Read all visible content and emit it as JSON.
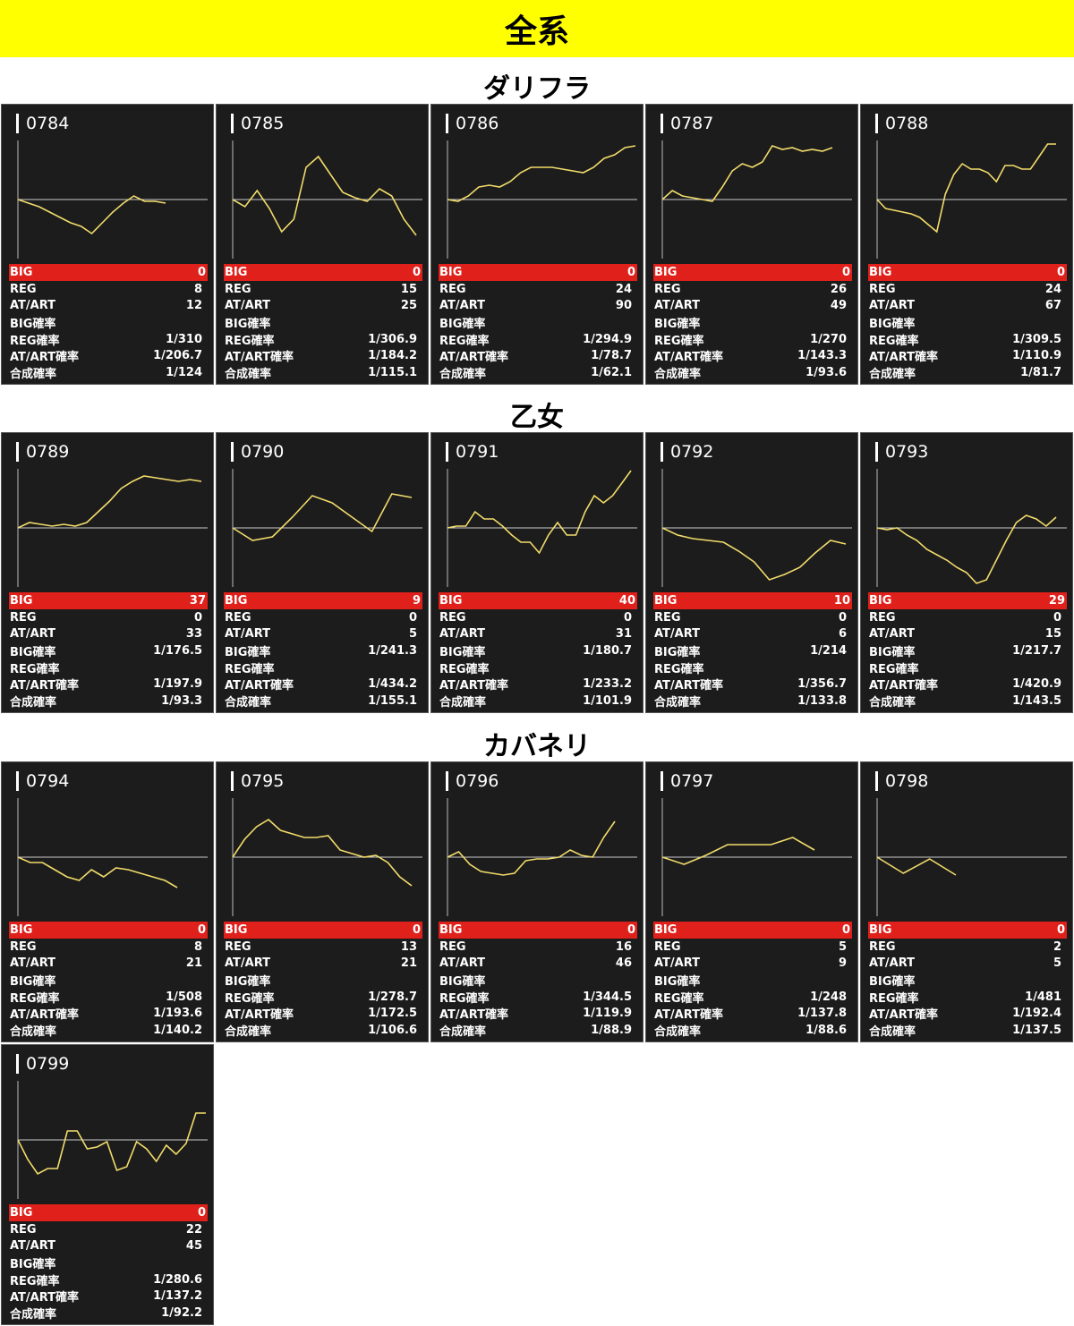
{
  "header": {
    "title": "全系"
  },
  "groups": [
    {
      "title": "ダリフラ",
      "machines": [
        {
          "id": "0784",
          "big": "0",
          "reg": "8",
          "atart": "12",
          "big_rate": "",
          "reg_rate": "1/310",
          "atart_rate": "1/206.7",
          "total_rate": "1/124",
          "graph": [
            0,
            -4,
            -8,
            -14,
            -20,
            -26,
            -30,
            -38,
            -26,
            -14,
            -4,
            4,
            -2,
            -2,
            -4
          ]
        },
        {
          "id": "0785",
          "big": "0",
          "reg": "15",
          "atart": "25",
          "big_rate": "",
          "reg_rate": "1/306.9",
          "atart_rate": "1/184.2",
          "total_rate": "1/115.1",
          "graph": [
            0,
            -8,
            10,
            -10,
            -36,
            -22,
            36,
            48,
            28,
            8,
            2,
            -2,
            12,
            4,
            -22,
            -40
          ]
        },
        {
          "id": "0786",
          "big": "0",
          "reg": "24",
          "atart": "90",
          "big_rate": "",
          "reg_rate": "1/294.9",
          "atart_rate": "1/78.7",
          "total_rate": "1/62.1",
          "graph": [
            0,
            -2,
            4,
            14,
            16,
            14,
            20,
            30,
            36,
            36,
            36,
            34,
            32,
            30,
            36,
            46,
            50,
            58,
            60
          ]
        },
        {
          "id": "0787",
          "big": "0",
          "reg": "26",
          "atart": "49",
          "big_rate": "",
          "reg_rate": "1/270",
          "atart_rate": "1/143.3",
          "total_rate": "1/93.6",
          "graph": [
            0,
            10,
            4,
            2,
            0,
            -2,
            14,
            32,
            40,
            36,
            42,
            60,
            56,
            58,
            54,
            56,
            54,
            58
          ]
        },
        {
          "id": "0788",
          "big": "0",
          "reg": "24",
          "atart": "67",
          "big_rate": "",
          "reg_rate": "1/309.5",
          "atart_rate": "1/110.9",
          "total_rate": "1/81.7",
          "graph": [
            0,
            -10,
            -12,
            -14,
            -16,
            -20,
            -28,
            -36,
            6,
            28,
            40,
            34,
            34,
            30,
            20,
            38,
            38,
            34,
            34,
            48,
            62,
            62
          ]
        }
      ]
    },
    {
      "title": "乙女",
      "machines": [
        {
          "id": "0789",
          "big": "37",
          "reg": "0",
          "atart": "33",
          "big_rate": "1/176.5",
          "reg_rate": "",
          "atart_rate": "1/197.9",
          "total_rate": "1/93.3",
          "graph": [
            0,
            6,
            4,
            2,
            4,
            2,
            6,
            18,
            30,
            44,
            52,
            58,
            56,
            54,
            52,
            54,
            52
          ]
        },
        {
          "id": "0790",
          "big": "9",
          "reg": "0",
          "atart": "5",
          "big_rate": "1/241.3",
          "reg_rate": "",
          "atart_rate": "1/434.2",
          "total_rate": "1/155.1",
          "graph": [
            0,
            -14,
            -10,
            12,
            36,
            28,
            12,
            -4,
            38,
            34
          ]
        },
        {
          "id": "0791",
          "big": "40",
          "reg": "0",
          "atart": "31",
          "big_rate": "1/180.7",
          "reg_rate": "",
          "atart_rate": "1/233.2",
          "total_rate": "1/101.9",
          "graph": [
            0,
            2,
            2,
            18,
            10,
            10,
            2,
            -8,
            -16,
            -16,
            -28,
            -8,
            6,
            -8,
            -8,
            18,
            36,
            28,
            36,
            50,
            64
          ]
        },
        {
          "id": "0792",
          "big": "10",
          "reg": "0",
          "atart": "6",
          "big_rate": "1/214",
          "reg_rate": "",
          "atart_rate": "1/356.7",
          "total_rate": "1/133.8",
          "graph": [
            0,
            -8,
            -12,
            -14,
            -16,
            -26,
            -38,
            -58,
            -52,
            -44,
            -28,
            -14,
            -18
          ]
        },
        {
          "id": "0793",
          "big": "29",
          "reg": "0",
          "atart": "15",
          "big_rate": "1/217.7",
          "reg_rate": "",
          "atart_rate": "1/420.9",
          "total_rate": "1/143.5",
          "graph": [
            0,
            -2,
            0,
            -8,
            -14,
            -24,
            -30,
            -36,
            -44,
            -50,
            -62,
            -58,
            -36,
            -14,
            6,
            14,
            10,
            2,
            12
          ]
        }
      ]
    },
    {
      "title": "カバネリ",
      "machines": [
        {
          "id": "0794",
          "big": "0",
          "reg": "8",
          "atart": "21",
          "big_rate": "",
          "reg_rate": "1/508",
          "atart_rate": "1/193.6",
          "total_rate": "1/140.2",
          "graph": [
            0,
            -6,
            -6,
            -14,
            -22,
            -26,
            -14,
            -22,
            -12,
            -14,
            -18,
            -22,
            -26,
            -34
          ]
        },
        {
          "id": "0795",
          "big": "0",
          "reg": "13",
          "atart": "21",
          "big_rate": "",
          "reg_rate": "1/278.7",
          "atart_rate": "1/172.5",
          "total_rate": "1/106.6",
          "graph": [
            0,
            20,
            34,
            42,
            30,
            26,
            22,
            22,
            24,
            8,
            4,
            0,
            2,
            -6,
            -22,
            -32
          ]
        },
        {
          "id": "0796",
          "big": "0",
          "reg": "16",
          "atart": "46",
          "big_rate": "",
          "reg_rate": "1/344.5",
          "atart_rate": "1/119.9",
          "total_rate": "1/88.9",
          "graph": [
            0,
            6,
            -8,
            -16,
            -18,
            -20,
            -18,
            -4,
            -2,
            -2,
            0,
            8,
            2,
            0,
            22,
            40
          ]
        },
        {
          "id": "0797",
          "big": "0",
          "reg": "5",
          "atart": "9",
          "big_rate": "",
          "reg_rate": "1/248",
          "atart_rate": "1/137.8",
          "total_rate": "1/88.6",
          "graph": [
            0,
            -8,
            2,
            14,
            14,
            14,
            22,
            8
          ]
        },
        {
          "id": "0798",
          "big": "0",
          "reg": "2",
          "atart": "5",
          "big_rate": "",
          "reg_rate": "1/481",
          "atart_rate": "1/192.4",
          "total_rate": "1/137.5",
          "graph": [
            0,
            -18,
            -2,
            -20
          ]
        },
        {
          "id": "0799",
          "big": "0",
          "reg": "22",
          "atart": "45",
          "big_rate": "",
          "reg_rate": "1/280.6",
          "atart_rate": "1/137.2",
          "total_rate": "1/92.2",
          "graph": [
            0,
            -22,
            -38,
            -32,
            -32,
            10,
            10,
            -10,
            -8,
            -2,
            -34,
            -30,
            -2,
            -10,
            -24,
            -6,
            -16,
            -4,
            30,
            30
          ]
        }
      ]
    }
  ],
  "labels": {
    "big": "BIG",
    "reg": "REG",
    "atart": "AT/ART",
    "big_rate": "BIG確率",
    "reg_rate": "REG確率",
    "atart_rate": "AT/ART確率",
    "total_rate": "合成確率"
  },
  "colors": {
    "banner": "#ffff00",
    "card_bg": "#1c1c1c",
    "big_row": "#e0201b",
    "graph_line": "#f2dc6b"
  }
}
